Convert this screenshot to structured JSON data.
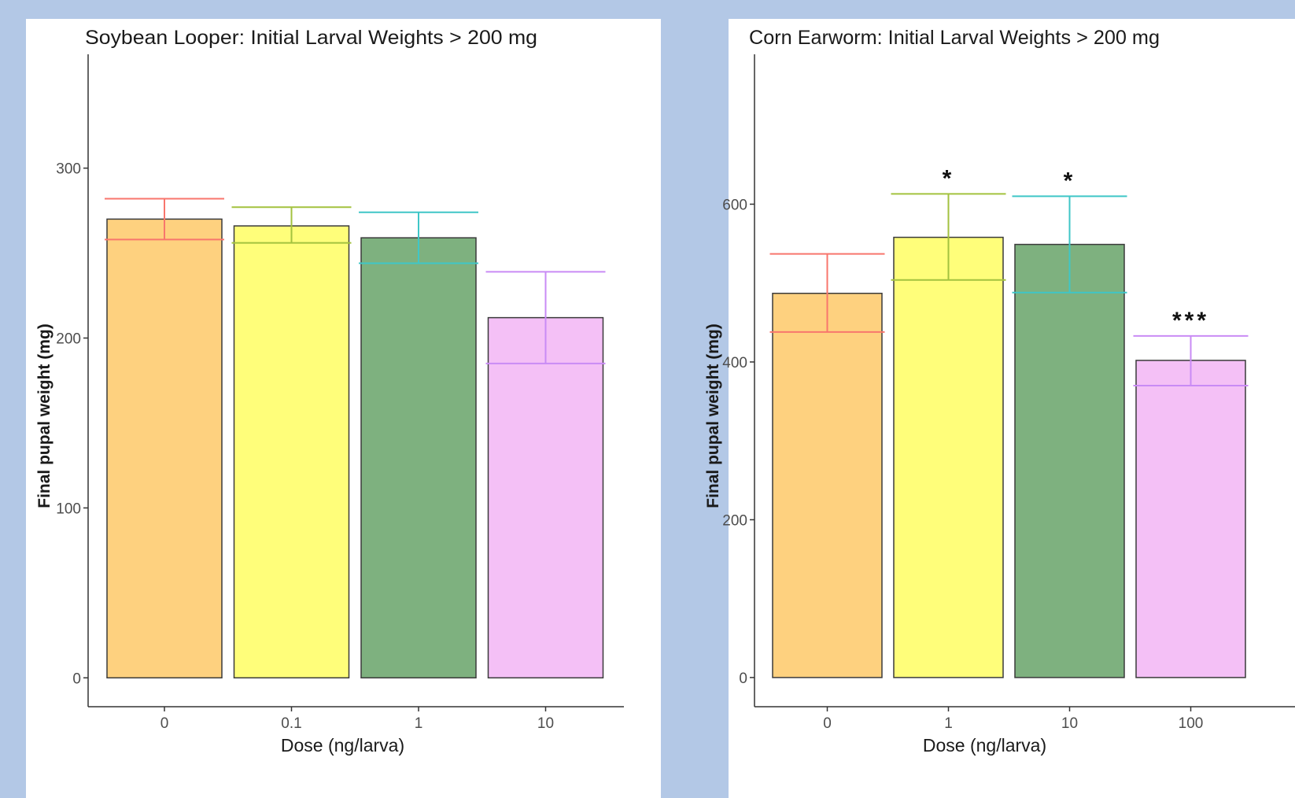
{
  "chart_data": [
    {
      "type": "bar",
      "title": "Soybean Looper: Initial Larval Weights > 200 mg",
      "xlabel": "Dose (ng/larva)",
      "ylabel": "Final pupal weight (mg)",
      "ylim": [
        -17,
        367
      ],
      "yticks": [
        0,
        100,
        200,
        300
      ],
      "grid": false,
      "legend": "none",
      "categories": [
        "0",
        "0.1",
        "1",
        "10"
      ],
      "values": [
        270,
        266,
        259,
        212
      ],
      "errors": [
        {
          "low": 258,
          "high": 282
        },
        {
          "low": 256,
          "high": 277
        },
        {
          "low": 244,
          "high": 274
        },
        {
          "low": 185,
          "high": 239
        }
      ],
      "annotations": [
        "",
        "",
        "",
        ""
      ],
      "bar_colors": [
        "#fed17f",
        "#fffe7a",
        "#7eb17f",
        "#f4c0f6"
      ],
      "error_colors": [
        "#f8766d",
        "#a3c23f",
        "#3fc6c7",
        "#c98bf5"
      ]
    },
    {
      "type": "bar",
      "title": "Corn Earworm: Initial Larval Weights > 200 mg",
      "xlabel": "Dose (ng/larva)",
      "ylabel": "Final pupal weight (mg)",
      "ylim": [
        -37,
        790
      ],
      "yticks": [
        0,
        200,
        400,
        600
      ],
      "grid": false,
      "legend": "none",
      "categories": [
        "0",
        "1",
        "10",
        "100"
      ],
      "values": [
        487,
        558,
        549,
        402
      ],
      "errors": [
        {
          "low": 438,
          "high": 537
        },
        {
          "low": 504,
          "high": 613
        },
        {
          "low": 488,
          "high": 610
        },
        {
          "low": 370,
          "high": 433
        }
      ],
      "annotations": [
        "",
        "*",
        "*",
        "***"
      ],
      "bar_colors": [
        "#fed17f",
        "#fffe7a",
        "#7eb17f",
        "#f4c0f6"
      ],
      "error_colors": [
        "#f8766d",
        "#a3c23f",
        "#3fc6c7",
        "#c98bf5"
      ]
    }
  ]
}
